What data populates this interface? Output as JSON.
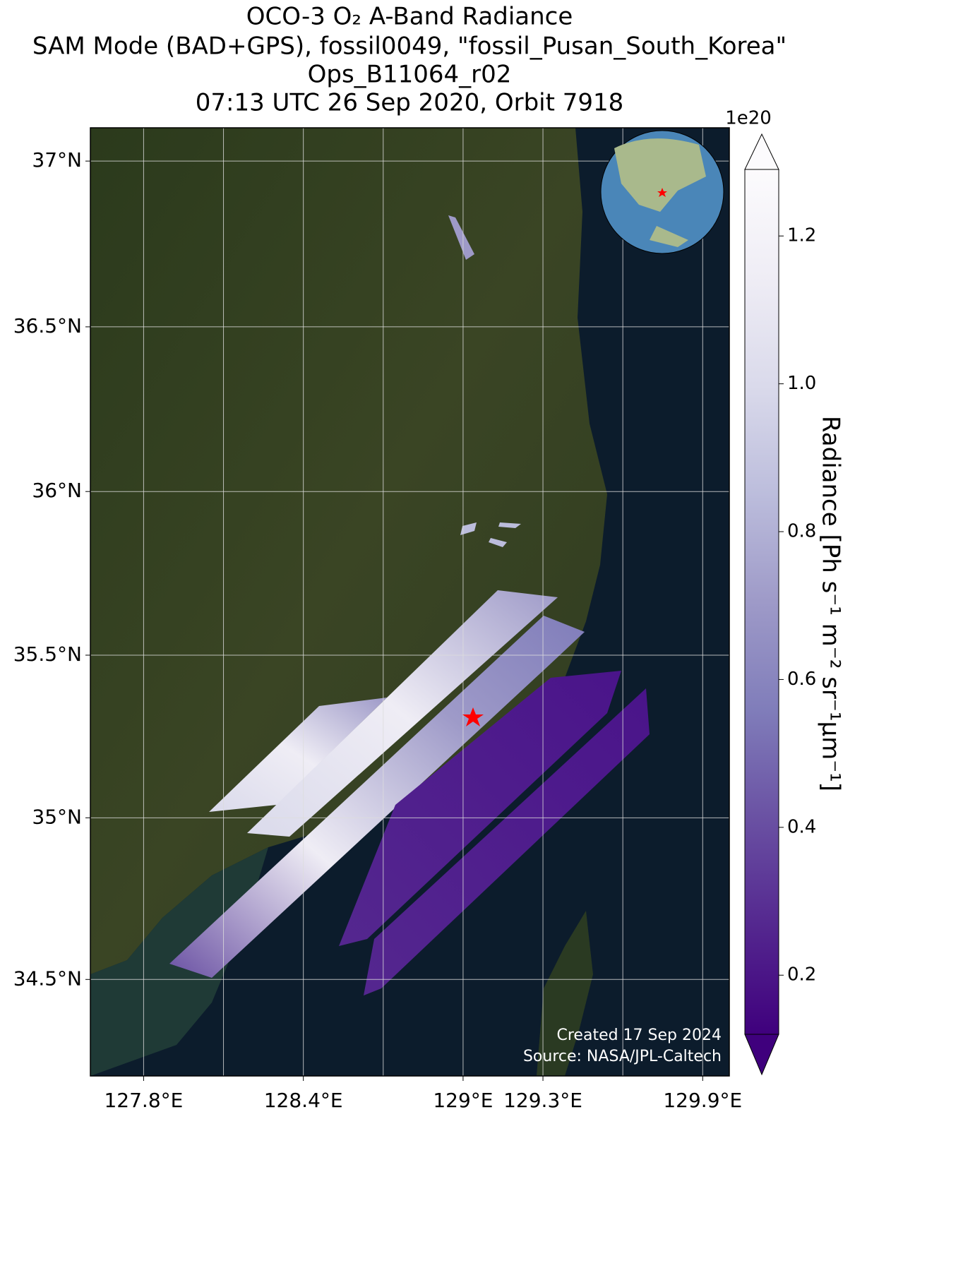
{
  "chart_data": {
    "type": "map",
    "title": [
      "OCO-3 O₂ A-Band Radiance",
      "SAM Mode (BAD+GPS), fossil0049, \"fossil_Pusan_South_Korea\"",
      "Ops_B11064_r02",
      "07:13 UTC 26 Sep 2020, Orbit 7918"
    ],
    "xlim": [
      127.6,
      130.0
    ],
    "ylim": [
      34.2,
      37.1
    ],
    "xticks": [
      {
        "value": 127.8,
        "label": "127.8°E"
      },
      {
        "value": 128.4,
        "label": "128.4°E"
      },
      {
        "value": 129.0,
        "label": "129°E"
      },
      {
        "value": 129.3,
        "label": "129.3°E"
      },
      {
        "value": 129.9,
        "label": "129.9°E"
      }
    ],
    "xgrid": [
      127.8,
      128.1,
      128.4,
      128.7,
      129.0,
      129.3,
      129.6,
      129.9
    ],
    "yticks": [
      {
        "value": 34.5,
        "label": "34.5°N"
      },
      {
        "value": 35,
        "label": "35°N"
      },
      {
        "value": 35.5,
        "label": "35.5°N"
      },
      {
        "value": 36,
        "label": "36°N"
      },
      {
        "value": 36.5,
        "label": "36.5°N"
      },
      {
        "value": 37,
        "label": "37°N"
      }
    ],
    "grid": true,
    "colorbar": {
      "label": "Radiance [Ph s⁻¹ m⁻² sr⁻¹μm⁻¹]",
      "exponent": "1e20",
      "clim": [
        0.12,
        1.29
      ],
      "ticks": [
        0.2,
        0.4,
        0.6,
        0.8,
        {
          "value": 1,
          "label": "1.0"
        },
        1.2
      ],
      "colors": [
        "#3f007d",
        "#54278f",
        "#6a51a3",
        "#807dba",
        "#9e9ac8",
        "#bcbddc",
        "#dadaeb",
        "#efedf5",
        "#fcfbfd"
      ]
    },
    "credits": [
      "Created 17 Sep 2024",
      "Source: NASA/JPL-Caltech"
    ]
  }
}
